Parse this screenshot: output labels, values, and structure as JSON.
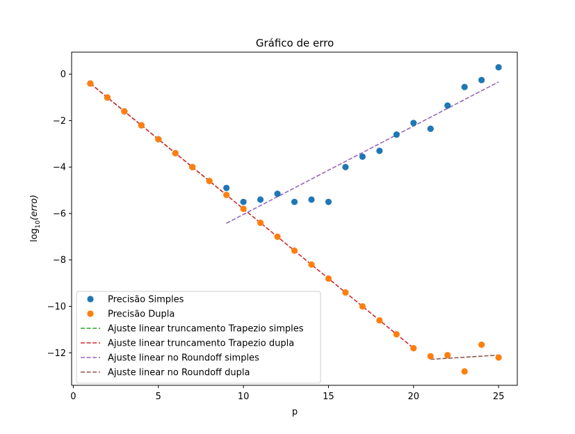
{
  "chart_data": {
    "type": "scatter",
    "title": "Gráfico de erro",
    "xlabel": "p",
    "ylabel_main": "log",
    "ylabel_sub": "10",
    "ylabel_arg": "(erro)",
    "xlim": [
      -0.1,
      26.1
    ],
    "ylim": [
      -13.4,
      0.95
    ],
    "xticks": [
      0,
      5,
      10,
      15,
      20,
      25
    ],
    "yticks": [
      0,
      -2,
      -4,
      -6,
      -8,
      -10,
      -12
    ],
    "xtick_labels": [
      "0",
      "5",
      "10",
      "15",
      "20",
      "25"
    ],
    "ytick_labels": [
      "0",
      "−2",
      "−4",
      "−6",
      "−8",
      "−10",
      "−12"
    ],
    "legend_position": "lower left",
    "series": [
      {
        "name": "Precisão Simples",
        "kind": "scatter",
        "color": "#1f77b4",
        "x": [
          1,
          2,
          3,
          4,
          5,
          6,
          7,
          8,
          9,
          10,
          11,
          12,
          13,
          14,
          15,
          16,
          17,
          18,
          19,
          20,
          21,
          22,
          23,
          24,
          25
        ],
        "y": [
          -0.4,
          -1.0,
          -1.6,
          -2.2,
          -2.8,
          -3.4,
          -4.0,
          -4.6,
          -4.9,
          -5.5,
          -5.4,
          -5.15,
          -5.5,
          -5.4,
          -5.5,
          -4.0,
          -3.55,
          -3.3,
          -2.6,
          -2.1,
          -2.35,
          -1.35,
          -0.55,
          -0.25,
          0.3
        ]
      },
      {
        "name": "Precisão Dupla",
        "kind": "scatter",
        "color": "#ff7f0e",
        "x": [
          1,
          2,
          3,
          4,
          5,
          6,
          7,
          8,
          9,
          10,
          11,
          12,
          13,
          14,
          15,
          16,
          17,
          18,
          19,
          20,
          21,
          22,
          23,
          24,
          25
        ],
        "y": [
          -0.4,
          -1.0,
          -1.6,
          -2.2,
          -2.8,
          -3.4,
          -4.0,
          -4.6,
          -5.2,
          -5.8,
          -6.4,
          -7.0,
          -7.6,
          -8.2,
          -8.8,
          -9.4,
          -10.0,
          -10.6,
          -11.2,
          -11.8,
          -12.15,
          -12.1,
          -12.8,
          -11.65,
          -12.2
        ]
      },
      {
        "name": "Ajuste linear truncamento Trapezio simples",
        "kind": "dashed-line",
        "color": "#2ca02c",
        "x": [
          1,
          9
        ],
        "y": [
          -0.4,
          -5.2
        ]
      },
      {
        "name": "Ajuste linear truncamento Trapezio dupla",
        "kind": "dashed-line",
        "color": "#d62728",
        "x": [
          1,
          20
        ],
        "y": [
          -0.4,
          -11.8
        ]
      },
      {
        "name": "Ajuste linear no Roundoff simples",
        "kind": "dashed-line",
        "color": "#9467bd",
        "x": [
          9,
          25
        ],
        "y": [
          -6.42,
          -0.33
        ]
      },
      {
        "name": "Ajuste linear no Roundoff dupla",
        "kind": "dashed-line",
        "color": "#8c564b",
        "x": [
          21,
          25
        ],
        "y": [
          -12.28,
          -12.1
        ]
      }
    ]
  }
}
